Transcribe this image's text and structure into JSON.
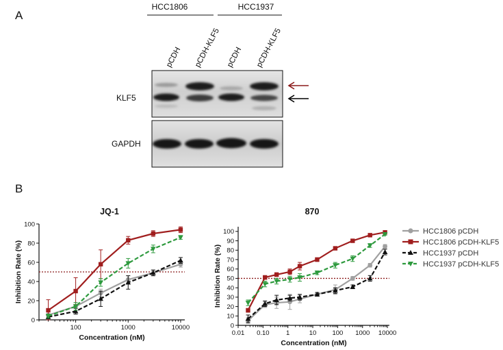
{
  "panel_a": {
    "letter": "A",
    "groups": [
      "HCC1806",
      "HCC1937"
    ],
    "lanes": [
      "pCDH",
      "pCDH-KLF5",
      "pCDH",
      "pCDH-KLF5"
    ],
    "blot_labels": [
      "KLF5",
      "GAPDH"
    ],
    "arrow_colors": [
      "#8b1a1a",
      "#000000"
    ]
  },
  "panel_b": {
    "letter": "B"
  },
  "colors": {
    "hcc1806_pcdh": "#a0a0a0",
    "hcc1806_klf5": "#a01e1e",
    "hcc1937_pcdh": "#111111",
    "hcc1937_klf5": "#2e9a3e",
    "threshold": "#8b1a1a"
  },
  "legend": [
    "HCC1806 pCDH",
    "HCC1806 pCDH-KLF5",
    "HCC1937 pCDH",
    "HCC1937 pCDH-KLF5"
  ],
  "chart_data": [
    {
      "type": "line",
      "title": "JQ-1",
      "xlabel": "Concentration (nM)",
      "ylabel": "Inhibition Rate (%)",
      "x_scale": "log",
      "xlim": [
        20,
        12000
      ],
      "ylim": [
        0,
        100
      ],
      "xticks": [
        100,
        1000,
        10000
      ],
      "xtick_labels": [
        "100",
        "1000",
        "10000"
      ],
      "yticks": [
        0,
        20,
        40,
        60,
        80,
        100
      ],
      "threshold": 50,
      "x": [
        30,
        100,
        300,
        1000,
        3000,
        10000
      ],
      "series": [
        {
          "name": "HCC1806 pCDH",
          "values": [
            5,
            14,
            28,
            42,
            49,
            58
          ],
          "errors": [
            3,
            4,
            4,
            4,
            3,
            3
          ],
          "style": "solid",
          "marker": "circle",
          "color_key": "hcc1806_pcdh"
        },
        {
          "name": "HCC1806 pCDH-KLF5",
          "values": [
            10,
            30,
            58,
            83,
            90,
            94
          ],
          "errors": [
            11,
            14,
            15,
            4,
            3,
            3
          ],
          "style": "solid",
          "marker": "square",
          "color_key": "hcc1806_klf5"
        },
        {
          "name": "HCC1937 pCDH",
          "values": [
            3,
            9,
            22,
            39,
            49,
            62
          ],
          "errors": [
            2,
            3,
            8,
            7,
            3,
            3
          ],
          "style": "dashed",
          "marker": "triangle-up",
          "color_key": "hcc1937_pcdh"
        },
        {
          "name": "HCC1937 pCDH-KLF5",
          "values": [
            4,
            14,
            39,
            59,
            74,
            86
          ],
          "errors": [
            2,
            4,
            4,
            5,
            4,
            2
          ],
          "style": "dashed",
          "marker": "triangle-down",
          "color_key": "hcc1937_klf5"
        }
      ]
    },
    {
      "type": "line",
      "title": "870",
      "xlabel": "Concentration (nM)",
      "ylabel": "Inhibition Rate (%)",
      "x_scale": "log",
      "xlim": [
        0.01,
        12000
      ],
      "ylim": [
        0,
        105
      ],
      "xticks": [
        0.01,
        0.1,
        1,
        10,
        100,
        1000,
        10000
      ],
      "xtick_labels": [
        "0.01",
        "0.10",
        "1",
        "10",
        "100",
        "1000",
        "10000"
      ],
      "yticks": [
        0,
        10,
        20,
        30,
        40,
        50,
        60,
        70,
        80,
        90,
        100
      ],
      "threshold": 50,
      "x": [
        0.025,
        0.12,
        0.35,
        1.2,
        3,
        15,
        80,
        400,
        2000,
        8000
      ],
      "series": [
        {
          "name": "HCC1806 pCDH",
          "values": [
            5,
            22,
            24,
            25,
            28,
            33,
            38,
            50,
            64,
            84
          ],
          "errors": [
            3,
            3,
            6,
            8,
            4,
            2,
            5,
            2,
            2,
            2
          ],
          "style": "solid",
          "marker": "circle",
          "color_key": "hcc1806_pcdh"
        },
        {
          "name": "HCC1806 pCDH-KLF5",
          "values": [
            16,
            51,
            54,
            57,
            63,
            70,
            82,
            90,
            96,
            99
          ],
          "errors": [
            2,
            2,
            2,
            3,
            4,
            2,
            1,
            1,
            1,
            1
          ],
          "style": "solid",
          "marker": "square",
          "color_key": "hcc1806_klf5"
        },
        {
          "name": "HCC1937 pCDH",
          "values": [
            7,
            23,
            27,
            29,
            30,
            33,
            37,
            41,
            50,
            78
          ],
          "errors": [
            4,
            3,
            5,
            3,
            3,
            2,
            3,
            2,
            3,
            3
          ],
          "style": "dashed",
          "marker": "triangle-up",
          "color_key": "hcc1937_pcdh"
        },
        {
          "name": "HCC1937 pCDH-KLF5",
          "values": [
            24,
            44,
            47,
            49,
            51,
            56,
            64,
            71,
            85,
            97
          ],
          "errors": [
            3,
            3,
            3,
            3,
            4,
            2,
            3,
            3,
            2,
            1
          ],
          "style": "dashed",
          "marker": "triangle-down",
          "color_key": "hcc1937_klf5"
        }
      ]
    }
  ]
}
